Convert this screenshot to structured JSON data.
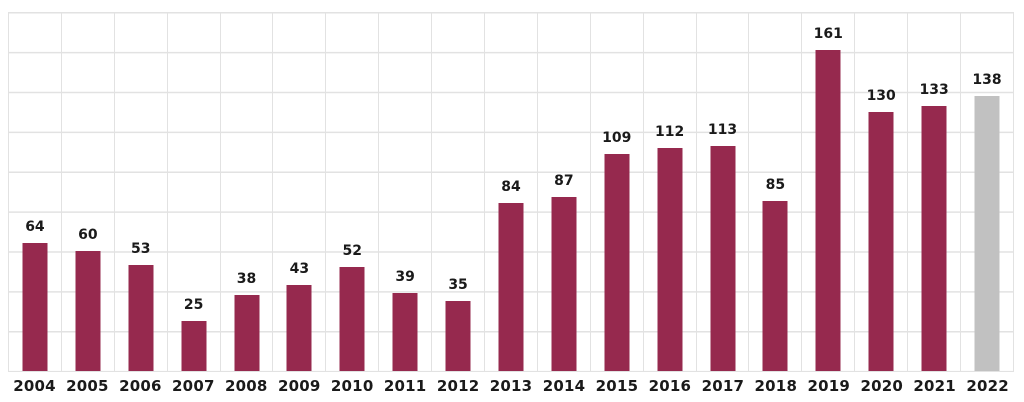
{
  "chart_data": {
    "type": "bar",
    "title": "",
    "xlabel": "",
    "ylabel": "",
    "categories": [
      "2004",
      "2005",
      "2006",
      "2007",
      "2008",
      "2009",
      "2010",
      "2011",
      "2012",
      "2013",
      "2014",
      "2015",
      "2016",
      "2017",
      "2018",
      "2019",
      "2020",
      "2021",
      "2022"
    ],
    "values": [
      64,
      60,
      53,
      25,
      38,
      43,
      52,
      39,
      35,
      84,
      87,
      109,
      112,
      113,
      85,
      161,
      130,
      133,
      138
    ],
    "ylim": [
      0,
      180
    ],
    "y_gridline_step": 20,
    "grid": "on",
    "legend": "none",
    "value_labels": "above-bars",
    "bar_colors": {
      "default": "#96294e",
      "2022": "#c1c1c1"
    },
    "colors": {
      "gridline": "#e2e2e2",
      "value_label": "#1a1a1a",
      "axis_label": "#1a1a1a",
      "background": "#ffffff"
    }
  }
}
